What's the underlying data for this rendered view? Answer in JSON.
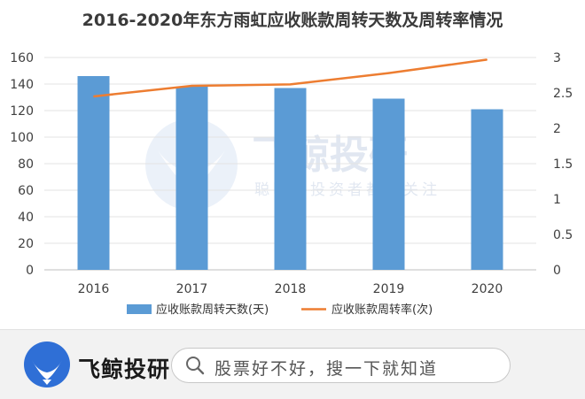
{
  "chart_data": {
    "type": "bar",
    "title": "2016-2020年东方雨虹应收账款周转天数及周转率情况",
    "categories": [
      "2016",
      "2017",
      "2018",
      "2019",
      "2020"
    ],
    "series": [
      {
        "name": "应收账款周转天数(天)",
        "type": "bar",
        "axis": "left",
        "color": "#5b9bd5",
        "values": [
          146,
          138,
          137,
          129,
          121
        ]
      },
      {
        "name": "应收账款周转率(次)",
        "type": "line",
        "axis": "right",
        "color": "#ed7d31",
        "values": [
          2.45,
          2.6,
          2.62,
          2.78,
          2.97
        ]
      }
    ],
    "y_left": {
      "lim": [
        0,
        160
      ],
      "ticks": [
        "0",
        "20",
        "40",
        "60",
        "80",
        "100",
        "120",
        "140",
        "160"
      ]
    },
    "y_right": {
      "lim": [
        0,
        3
      ],
      "ticks": [
        "0",
        "0.5",
        "1",
        "1.5",
        "2",
        "2.5",
        "3"
      ]
    },
    "gridlines": true,
    "legend_position": "bottom"
  },
  "watermark": {
    "title": "飞鲸投研",
    "subtitle": "聪明的投资者都在关注"
  },
  "footer": {
    "brand_name": "飞鲸投研",
    "search_text": "股票好不好，搜一下就知道",
    "accent_color": "#2f6fd6"
  }
}
